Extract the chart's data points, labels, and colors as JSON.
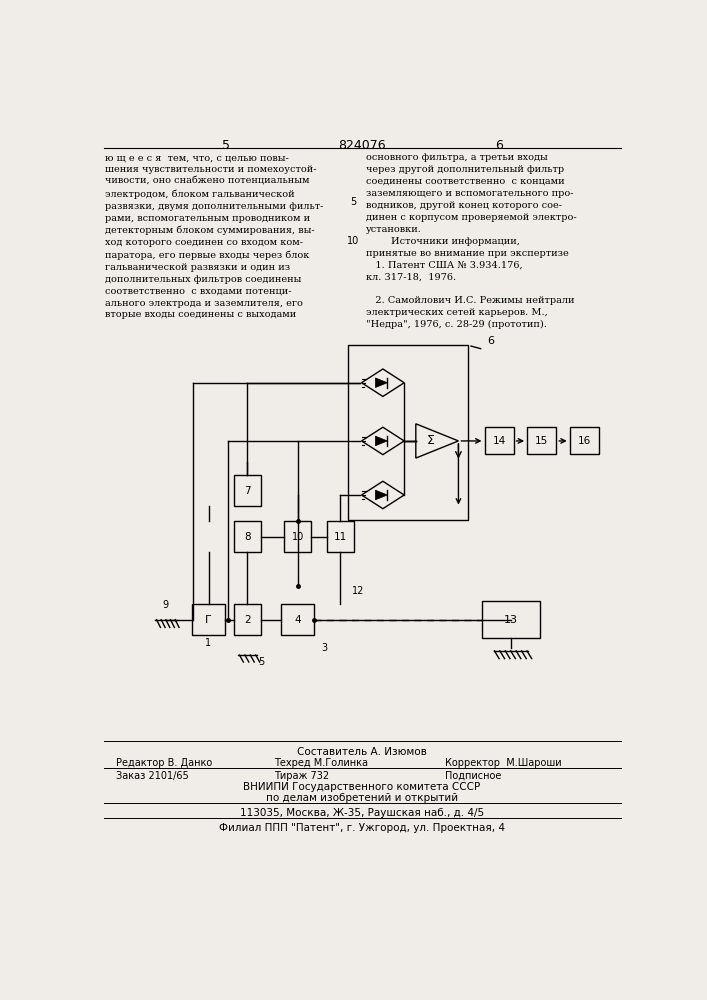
{
  "page_number_left": "5",
  "page_number_center": "824076",
  "page_number_right": "6",
  "text_left": "ю щ е е с я  тем, что, с целью повы-\nшения чувствительности и помехоустой-\nчивости, оно снабжено потенциальным\nэлектродом, блоком гальванической\nразвязки, двумя дополнительными фильт-\nрами, вспомогательным проводником и\nдетекторным блоком суммирования, вы-\nход которого соединен со входом ком-\nпаратора, его первые входы через блок\nгальванической развязки и один из\nдополнительных фильтров соединены\nсоответственно  с входами потенци-\nального электрода и заземлителя, его\nвторые входы соединены с выходами",
  "text_right": "основного фильтра, а третьи входы\nчерез другой дополнительный фильтр\nсоединены соответственно  с концами\nзаземляющего и вспомогательного про-\nводников, другой конец которого сое-\nдинен с корпусом проверяемой электро-\nустановки.\n        Источники информации,\nпринятые во внимание при экспертизе\n   1. Патент США № 3.934.176,\nкл. 317-18,  1976.\n\n   2. Самойлович И.С. Режимы нейтрали\nэлектрических сетей карьеров. М.,\n\"Недра\", 1976, с. 28-29 (прототип).",
  "footer_line1": "Составитель А. Изюмов",
  "footer_line2_label1": "Редактор В. Данко",
  "footer_line2_label2": "Техред М.Голинка",
  "footer_line2_label3": "Корректор  М.Шароши",
  "footer_line3_label1": "Заказ 2101/65",
  "footer_line3_label2": "Тираж 732",
  "footer_line3_label3": "Подписное",
  "footer_line4": "ВНИИПИ Государственного комитета СССР",
  "footer_line5": "по делам изобретений и открытий",
  "footer_line6": "113035, Москва, Ж-35, Раушская наб., д. 4/5",
  "footer_line7": "Филиал ППП \"Патент\", г. Ужгород, ул. Проектная, 4",
  "bg_color": "#f0ede8"
}
